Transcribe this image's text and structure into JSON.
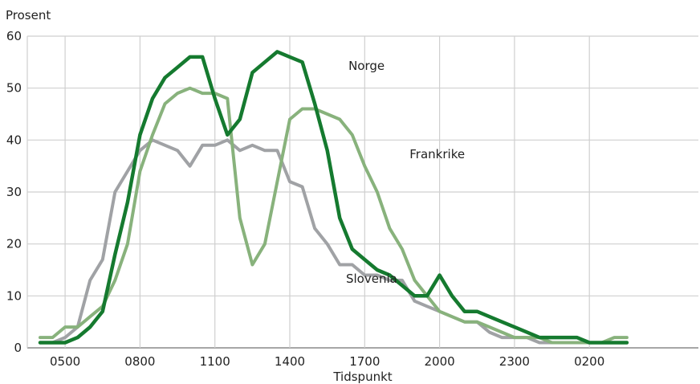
{
  "chart_data": {
    "type": "line",
    "ylabel": "Prosent",
    "xlabel": "Tidspunkt",
    "ylim": [
      0,
      60
    ],
    "yticks": [
      0,
      10,
      20,
      30,
      40,
      50,
      60
    ],
    "xticks": [
      "0500",
      "0800",
      "1100",
      "1400",
      "1700",
      "2000",
      "2300",
      "0200"
    ],
    "grid": true,
    "x": [
      "0400",
      "0430",
      "0500",
      "0530",
      "0600",
      "0630",
      "0700",
      "0730",
      "0800",
      "0830",
      "0900",
      "0930",
      "1000",
      "1030",
      "1100",
      "1130",
      "1200",
      "1230",
      "1300",
      "1330",
      "1400",
      "1430",
      "1500",
      "1530",
      "1600",
      "1630",
      "1700",
      "1730",
      "1800",
      "1830",
      "1900",
      "1930",
      "2000",
      "2030",
      "2100",
      "2130",
      "2200",
      "2230",
      "2300",
      "2330",
      "0000",
      "0030",
      "0100",
      "0130",
      "0200",
      "0230",
      "0300",
      "0330"
    ],
    "series": [
      {
        "name": "Slovenia",
        "color": "#a0a2a5",
        "values": [
          1,
          1,
          2,
          4,
          13,
          17,
          30,
          34,
          38,
          40,
          39,
          38,
          35,
          39,
          39,
          40,
          38,
          39,
          38,
          38,
          32,
          31,
          23,
          20,
          16,
          16,
          14,
          14,
          13,
          13,
          9,
          8,
          7,
          6,
          5,
          5,
          3,
          2,
          2,
          2,
          1,
          1,
          1,
          1,
          1,
          1,
          1,
          1
        ]
      },
      {
        "name": "Frankrike",
        "color": "#88b27c",
        "values": [
          2,
          2,
          4,
          4,
          6,
          8,
          13,
          20,
          34,
          41,
          47,
          49,
          50,
          49,
          49,
          48,
          25,
          16,
          20,
          32,
          44,
          46,
          46,
          45,
          44,
          41,
          35,
          30,
          23,
          19,
          13,
          10,
          7,
          6,
          5,
          5,
          4,
          3,
          2,
          2,
          2,
          1,
          1,
          1,
          1,
          1,
          2,
          2
        ]
      },
      {
        "name": "Norge",
        "color": "#157a2f",
        "values": [
          1,
          1,
          1,
          2,
          4,
          7,
          18,
          28,
          41,
          48,
          52,
          54,
          56,
          56,
          48,
          41,
          44,
          53,
          55,
          57,
          56,
          55,
          47,
          38,
          25,
          19,
          17,
          15,
          14,
          12,
          10,
          10,
          14,
          10,
          7,
          7,
          6,
          5,
          4,
          3,
          2,
          2,
          2,
          2,
          1,
          1,
          1,
          1
        ]
      }
    ]
  }
}
